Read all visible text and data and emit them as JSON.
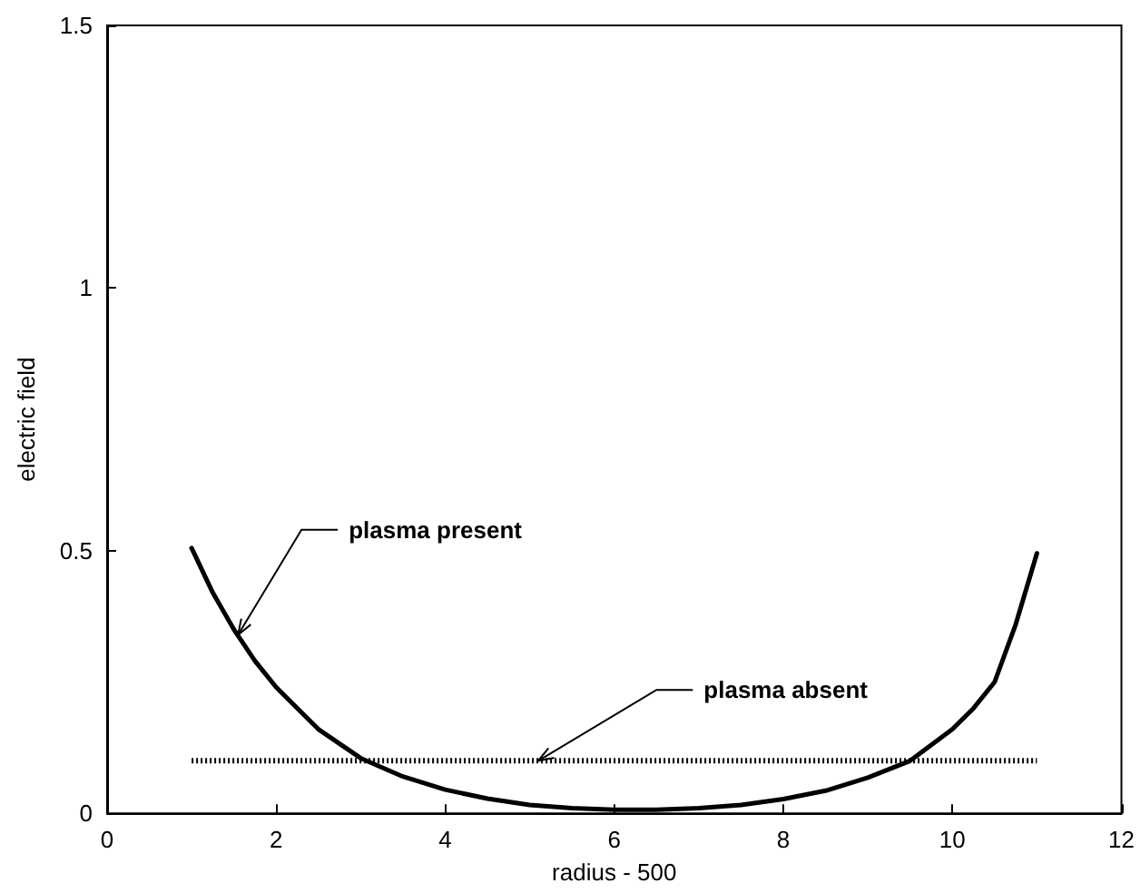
{
  "chart_data": {
    "type": "line",
    "xlabel": "radius - 500",
    "ylabel": "electric field",
    "xlim": [
      0,
      12
    ],
    "ylim": [
      0,
      1.5
    ],
    "xticks": [
      0,
      2,
      4,
      6,
      8,
      10,
      12
    ],
    "yticks": [
      0,
      0.5,
      1,
      1.5
    ],
    "marker": "none",
    "series": [
      {
        "color": "#000000",
        "line_style": "solid",
        "x": [
          1,
          1.25,
          1.5,
          1.75,
          2,
          2.5,
          3,
          3.5,
          4,
          4.5,
          5,
          5.5,
          6,
          6.5,
          7,
          7.5,
          8,
          8.5,
          9,
          9.5,
          10,
          10.25,
          10.5,
          10.75,
          11
        ],
        "values": [
          0.505,
          0.42,
          0.35,
          0.29,
          0.24,
          0.16,
          0.105,
          0.07,
          0.045,
          0.028,
          0.016,
          0.01,
          0.007,
          0.007,
          0.01,
          0.016,
          0.027,
          0.043,
          0.068,
          0.1,
          0.16,
          0.2,
          0.25,
          0.36,
          0.495
        ]
      },
      {
        "color": "#000000",
        "line_style": "dotted",
        "x": [
          1,
          11
        ],
        "values": [
          0.1,
          0.1
        ]
      }
    ],
    "annotations": [
      {
        "text": "plasma present",
        "x": 1.55,
        "y": 0.34
      },
      {
        "text": "plasma absent",
        "x": 5.1,
        "y": 0.1
      }
    ]
  }
}
